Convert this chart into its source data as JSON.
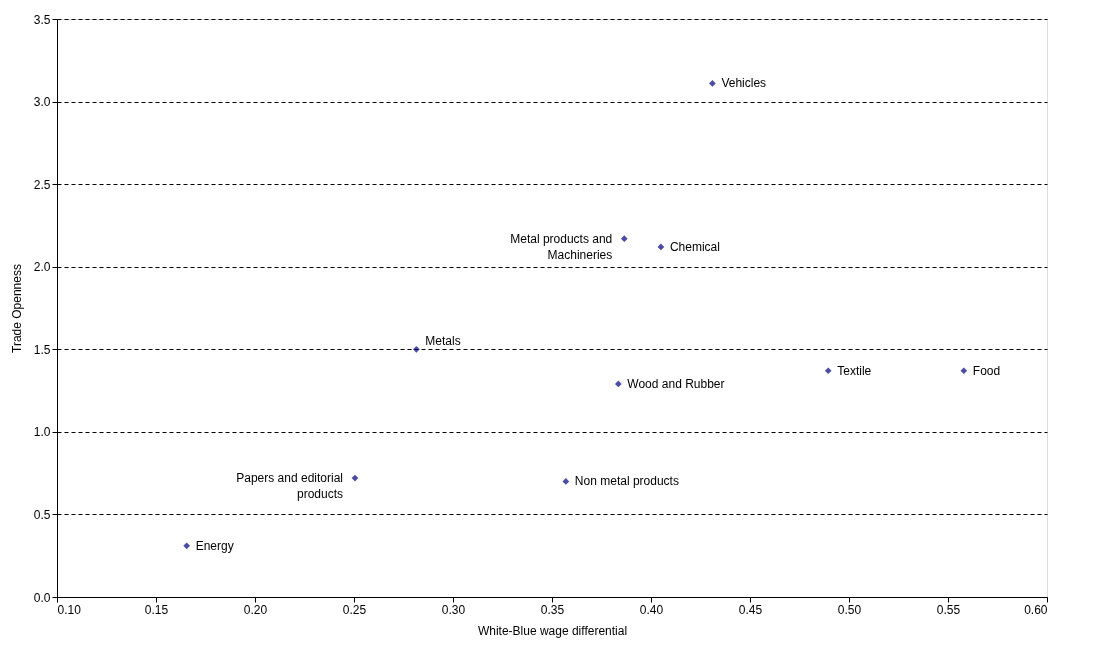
{
  "chart_data": {
    "type": "scatter",
    "xlabel": "White-Blue wage differential",
    "ylabel": "Trade Openness",
    "x": [
      0.431,
      0.3865,
      0.405,
      0.2815,
      0.3835,
      0.4895,
      0.558,
      0.2505,
      0.357,
      0.1655
    ],
    "series": [
      {
        "color": "#000080",
        "values": [
          3.11,
          2.17,
          2.12,
          1.5,
          1.29,
          1.37,
          1.37,
          0.72,
          0.7,
          0.31
        ]
      }
    ],
    "annotations": [
      {
        "text": "Vehicles",
        "x": 0.431,
        "y": 3.11
      },
      {
        "text": "Metal products and Machineries",
        "x": 0.3865,
        "y": 2.17
      },
      {
        "text": "Chemical",
        "x": 0.405,
        "y": 2.12
      },
      {
        "text": "Metals",
        "x": 0.2815,
        "y": 1.5
      },
      {
        "text": "Wood and Rubber",
        "x": 0.3835,
        "y": 1.29
      },
      {
        "text": "Textile",
        "x": 0.4895,
        "y": 1.37
      },
      {
        "text": "Food",
        "x": 0.558,
        "y": 1.37
      },
      {
        "text": "Papers and editorial products",
        "x": 0.2505,
        "y": 0.72
      },
      {
        "text": "Non metal products",
        "x": 0.357,
        "y": 0.7
      },
      {
        "text": "Energy",
        "x": 0.1655,
        "y": 0.31
      }
    ],
    "xlim": [
      0.1,
      0.6
    ],
    "xticks": [
      {
        "value": 0.1,
        "label": "0.10"
      },
      {
        "value": 0.15,
        "label": "0.15"
      },
      {
        "value": 0.2,
        "label": "0.20"
      },
      {
        "value": 0.25,
        "label": "0.25"
      },
      {
        "value": 0.3,
        "label": "0.30"
      },
      {
        "value": 0.35,
        "label": "0.35"
      },
      {
        "value": 0.4,
        "label": "0.40"
      },
      {
        "value": 0.45,
        "label": "0.45"
      },
      {
        "value": 0.5,
        "label": "0.50"
      },
      {
        "value": 0.55,
        "label": "0.55"
      },
      {
        "value": 0.6,
        "label": "0.60"
      }
    ],
    "ylim": [
      0.0,
      3.5
    ],
    "yticks": [
      {
        "value": 0,
        "label": "0.0"
      },
      {
        "value": 0.5,
        "label": "0.5"
      },
      {
        "value": 1,
        "label": "1.0"
      },
      {
        "value": 1.5,
        "label": "1.5"
      },
      {
        "value": 2,
        "label": "2.0"
      },
      {
        "value": 2.5,
        "label": "2.5"
      },
      {
        "value": 3,
        "label": "3.0"
      },
      {
        "value": 3.5,
        "label": "3.5"
      }
    ],
    "grid": "y",
    "marker": "diamond"
  }
}
